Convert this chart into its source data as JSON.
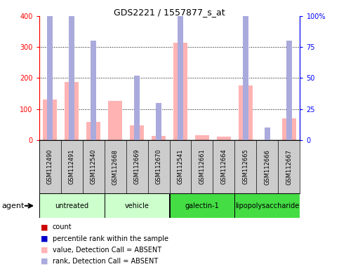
{
  "title": "GDS2221 / 1557877_s_at",
  "samples": [
    "GSM112490",
    "GSM112491",
    "GSM112540",
    "GSM112668",
    "GSM112669",
    "GSM112670",
    "GSM112541",
    "GSM112661",
    "GSM112664",
    "GSM112665",
    "GSM112666",
    "GSM112667"
  ],
  "absent_value_bars": [
    130,
    188,
    58,
    127,
    47,
    12,
    315,
    16,
    11,
    177,
    null,
    69
  ],
  "absent_rank_markers": [
    112,
    138,
    80,
    null,
    52,
    30,
    200,
    null,
    null,
    133,
    10,
    80
  ],
  "group_data": [
    {
      "name": "untreated",
      "start": 0,
      "end": 2,
      "color": "#ccffcc"
    },
    {
      "name": "vehicle",
      "start": 3,
      "end": 5,
      "color": "#ccffcc"
    },
    {
      "name": "galectin-1",
      "start": 6,
      "end": 8,
      "color": "#44dd44"
    },
    {
      "name": "lipopolysaccharide",
      "start": 9,
      "end": 11,
      "color": "#44dd44"
    }
  ],
  "title_fontsize": 9,
  "absent_bar_color": "#ffb3b3",
  "absent_rank_color": "#aaaadd",
  "count_color": "#cc0000",
  "rank_color": "#0000cc",
  "legend_items": [
    {
      "label": "count",
      "color": "#cc0000"
    },
    {
      "label": "percentile rank within the sample",
      "color": "#0000cc"
    },
    {
      "label": "value, Detection Call = ABSENT",
      "color": "#ffb3b3"
    },
    {
      "label": "rank, Detection Call = ABSENT",
      "color": "#aaaadd"
    }
  ]
}
